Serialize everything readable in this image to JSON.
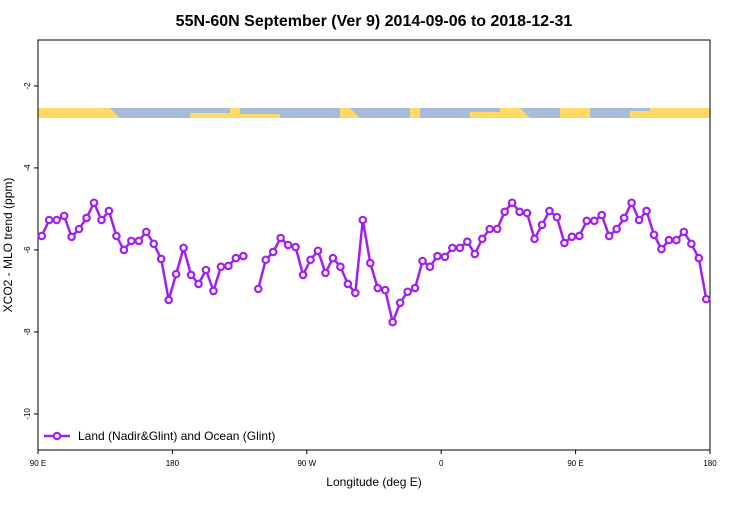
{
  "chart_data": {
    "type": "line",
    "title": "55N-60N September (Ver 9)   2014-09-06 to 2018-12-31",
    "x_label": "Longitude (deg E)",
    "y_label": "XCO2 - MLO trend (ppm)",
    "xlim": [
      90,
      540
    ],
    "xticks": [
      {
        "value": 90,
        "label": "90 E"
      },
      {
        "value": 180,
        "label": "180"
      },
      {
        "value": 270,
        "label": "90 W"
      },
      {
        "value": 360,
        "label": "0"
      },
      {
        "value": 450,
        "label": "90 E"
      },
      {
        "value": 540,
        "label": "180"
      }
    ],
    "ylim": [
      -10.88,
      -0.88
    ],
    "yticks": [
      -10,
      -8,
      -6,
      -4,
      -2
    ],
    "legend": "bottom-left",
    "x": [
      92.5,
      97.5,
      102.5,
      107.5,
      112.5,
      117.5,
      122.5,
      127.5,
      132.5,
      137.5,
      142.5,
      147.5,
      152.5,
      157.5,
      162.5,
      167.5,
      172.5,
      177.5,
      182.5,
      187.5,
      192.5,
      197.5,
      202.5,
      207.5,
      212.5,
      217.5,
      222.5,
      227.5,
      232.5,
      237.5,
      242.5,
      247.5,
      252.5,
      257.5,
      262.5,
      267.5,
      272.5,
      277.5,
      282.5,
      287.5,
      292.5,
      297.5,
      302.5,
      307.5,
      312.5,
      317.5,
      322.5,
      327.5,
      332.5,
      337.5,
      342.5,
      347.5,
      352.5,
      357.5,
      362.5,
      367.5,
      372.5,
      377.5,
      382.5,
      387.5,
      392.5,
      397.5,
      402.5,
      407.5,
      412.5,
      417.5,
      422.5,
      427.5,
      432.5,
      437.5,
      442.5,
      447.5,
      452.5,
      457.5,
      462.5,
      467.5,
      472.5,
      477.5,
      482.5,
      487.5,
      492.5,
      497.5,
      502.5,
      507.5,
      512.5,
      517.5,
      522.5,
      527.5,
      532.5,
      537.5
    ],
    "series": [
      {
        "name": "Land (Nadir&Glint) and Ocean (Glint)",
        "color": "#a020f0",
        "values": [
          -5.66,
          -5.27,
          -5.27,
          -5.17,
          -5.68,
          -5.49,
          -5.22,
          -4.85,
          -5.27,
          -5.05,
          -5.66,
          -6.0,
          -5.78,
          -5.78,
          -5.56,
          -5.85,
          -6.22,
          -7.22,
          -6.59,
          -5.95,
          -6.61,
          -6.83,
          -6.49,
          -7.0,
          -6.41,
          -6.39,
          -6.2,
          -6.15,
          null,
          -6.95,
          -6.24,
          -6.05,
          -5.71,
          -5.88,
          -5.93,
          -6.61,
          -6.24,
          -6.02,
          -6.56,
          -6.2,
          -6.41,
          -6.83,
          -7.05,
          -5.27,
          -6.32,
          -6.93,
          -6.98,
          -7.76,
          -7.29,
          -7.02,
          -6.93,
          -6.27,
          -6.41,
          -6.15,
          -6.17,
          -5.95,
          -5.95,
          -5.8,
          -6.1,
          -5.73,
          -5.49,
          -5.49,
          -5.07,
          -4.85,
          -5.07,
          -5.1,
          -5.73,
          -5.39,
          -5.05,
          -5.2,
          -5.83,
          -5.68,
          -5.66,
          -5.29,
          -5.29,
          -5.15,
          -5.66,
          -5.49,
          -5.22,
          -4.85,
          -5.27,
          -5.05,
          -5.63,
          -5.98,
          -5.76,
          -5.76,
          -5.56,
          -5.85,
          -6.2,
          -7.2
        ]
      }
    ]
  }
}
